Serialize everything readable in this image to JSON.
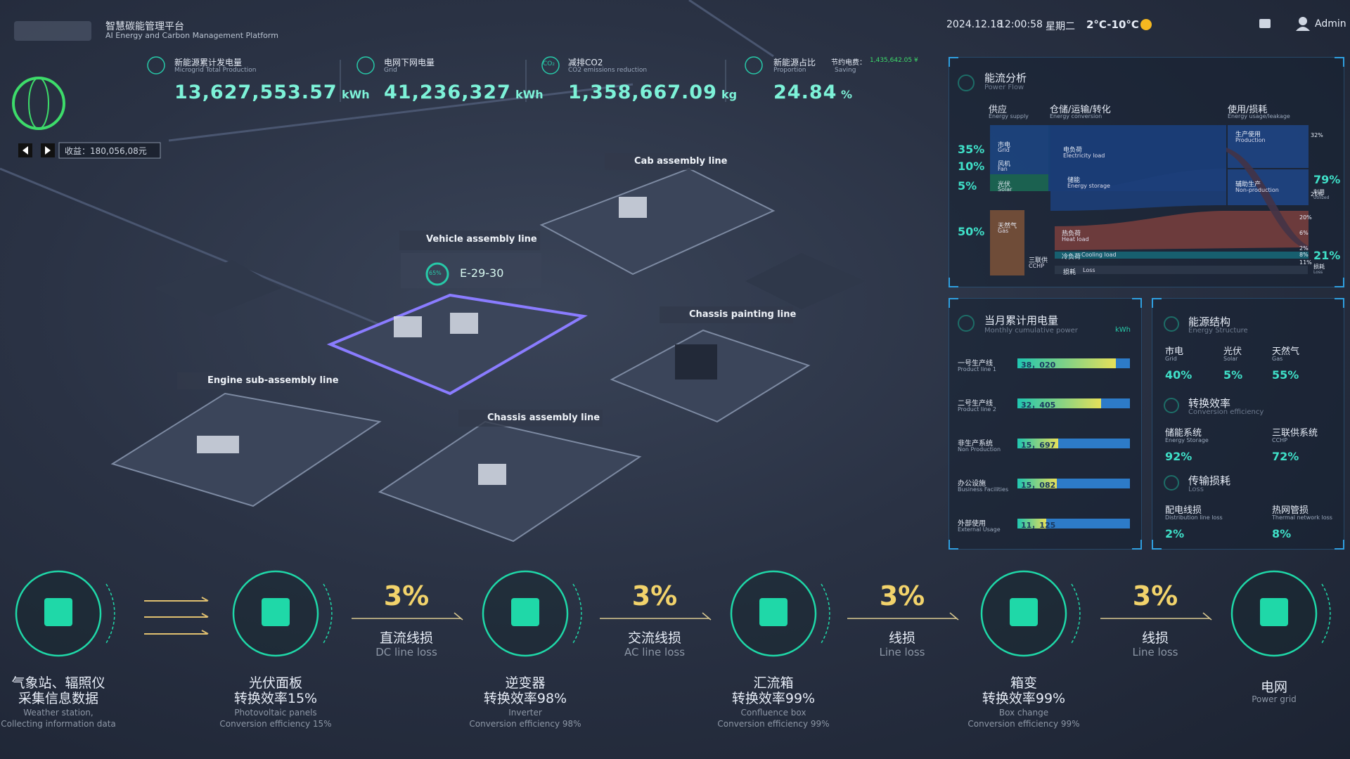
{
  "header": {
    "title": "智慧碳能管理平台",
    "subtitle": "AI Energy and Carbon Management Platform",
    "date": "2024.12.18",
    "time": "12:00:58",
    "weekday": "星期二",
    "weather": "2°C-10°C",
    "user": "Admin"
  },
  "kpis": [
    {
      "title": "新能源累计发电量",
      "subtitle": "Microgrid Total Production",
      "value": "13,627,553.57",
      "unit": "kWh"
    },
    {
      "title": "电网下网电量",
      "subtitle": "Grid",
      "value": "41,236,327",
      "unit": "kWh"
    },
    {
      "title": "减排CO2",
      "subtitle": "CO2 emissions reduction",
      "value": "1,358,667.09",
      "unit": "kg",
      "icon": "CO₂"
    },
    {
      "title": "新能源占比",
      "subtitle": "Proportion",
      "value": "24.84",
      "unit": "%",
      "saving_label": "节约电费：",
      "saving_sub": "Saving",
      "saving_value": "1,435,642.05 ¥"
    }
  ],
  "revenue": "收益：180,056,08元",
  "scene": {
    "lines": [
      "Cab assembly line",
      "Vehicle assembly line",
      "Chassis painting line",
      "Engine sub-assembly line",
      "Chassis assembly line"
    ],
    "device": "E-29-30",
    "device_rate": "65%"
  },
  "power_flow": {
    "title": "能流分析",
    "subtitle": "Power Flow",
    "columns": [
      {
        "cn": "供应",
        "en": "Energy supply"
      },
      {
        "cn": "仓储/运输/转化",
        "en": "Energy conversion"
      },
      {
        "cn": "使用/损耗",
        "en": "Energy usage/leakage"
      }
    ],
    "supply": [
      {
        "cn": "市电",
        "en": "Grid",
        "pct": "35%"
      },
      {
        "cn": "风机",
        "en": "Fan",
        "pct": "10%"
      },
      {
        "cn": "光伏",
        "en": "Solar",
        "pct": "5%"
      },
      {
        "cn": "天然气",
        "en": "Gas",
        "pct": "50%"
      }
    ],
    "conversion": [
      {
        "cn": "电负荷",
        "en": "Electricity load"
      },
      {
        "cn": "储能",
        "en": "Energy storage"
      },
      {
        "cn": "热负荷",
        "en": "Heat load"
      },
      {
        "cn": "冷负荷",
        "en": "Cooling load"
      },
      {
        "cn": "损耗",
        "en": "Loss"
      },
      {
        "cn": "三联供",
        "en": "CCHP"
      }
    ],
    "usage": [
      {
        "cn": "生产使用",
        "en": "Production",
        "pct": "32%"
      },
      {
        "cn": "辅助生产",
        "en": "Non-production",
        "pct": "21%"
      }
    ],
    "small_pcts": [
      "20%",
      "6%",
      "2%",
      "8%",
      "11%"
    ],
    "utilized": {
      "pct": "79%",
      "cn": "利用",
      "en": "Utilized"
    },
    "loss": {
      "pct": "21%",
      "cn": "损耗",
      "en": "Loss"
    }
  },
  "monthly_power": {
    "title": "当月累计用电量",
    "subtitle": "Monthly cumulative power",
    "unit": "kWh",
    "rows": [
      {
        "cn": "一号生产线",
        "en": "Product line 1",
        "value": 38020,
        "label": "38，020"
      },
      {
        "cn": "二号生产线",
        "en": "Product line 2",
        "value": 32405,
        "label": "32，405"
      },
      {
        "cn": "非生产系统",
        "en": "Non Production",
        "value": 15697,
        "label": "15，697"
      },
      {
        "cn": "办公设施",
        "en": "Business Facilities",
        "value": 15082,
        "label": "15，082"
      },
      {
        "cn": "外部使用",
        "en": "External Usage",
        "value": 11125,
        "label": "11，125"
      }
    ]
  },
  "energy_structure": {
    "sections": [
      {
        "title": "能源结构",
        "subtitle": "Energy Structure",
        "items": [
          {
            "cn": "市电",
            "en": "Grid",
            "pct": "40%"
          },
          {
            "cn": "光伏",
            "en": "Solar",
            "pct": "5%"
          },
          {
            "cn": "天然气",
            "en": "Gas",
            "pct": "55%"
          }
        ]
      },
      {
        "title": "转换效率",
        "subtitle": "Conversion efficiency",
        "items": [
          {
            "cn": "储能系统",
            "en": "Energy Storage",
            "pct": "92%"
          },
          {
            "cn": "三联供系统",
            "en": "CCHP",
            "pct": "72%"
          }
        ]
      },
      {
        "title": "传输损耗",
        "subtitle": "Loss",
        "items": [
          {
            "cn": "配电线损",
            "en": "Distribution line loss",
            "pct": "2%"
          },
          {
            "cn": "热网管损",
            "en": "Thermal network loss",
            "pct": "8%"
          }
        ]
      }
    ]
  },
  "process": {
    "stations": [
      {
        "cn": [
          "气象站、辐照仪",
          "采集信息数据"
        ],
        "en": [
          "Weather station,",
          "Collecting information data"
        ]
      },
      {
        "cn": [
          "光伏面板",
          "转换效率15%"
        ],
        "en": [
          "Photovoltaic panels",
          "Conversion efficiency 15%"
        ]
      },
      {
        "cn": [
          "逆变器",
          "转换效率98%"
        ],
        "en": [
          "Inverter",
          "Conversion efficiency 98%"
        ]
      },
      {
        "cn": [
          "汇流箱",
          "转换效率99%"
        ],
        "en": [
          "Confluence box",
          "Conversion efficiency 99%"
        ]
      },
      {
        "cn": [
          "箱变",
          "转换效率99%"
        ],
        "en": [
          "Box change",
          "Conversion efficiency 99%"
        ]
      },
      {
        "cn": [
          "电网"
        ],
        "en": [
          "Power grid"
        ]
      }
    ],
    "losses": [
      {
        "pct": "3%",
        "cn": "直流线损",
        "en": "DC line loss"
      },
      {
        "pct": "3%",
        "cn": "交流线损",
        "en": "AC line loss"
      },
      {
        "pct": "3%",
        "cn": "线损",
        "en": "Line loss"
      },
      {
        "pct": "3%",
        "cn": "线损",
        "en": "Line loss"
      }
    ]
  }
}
